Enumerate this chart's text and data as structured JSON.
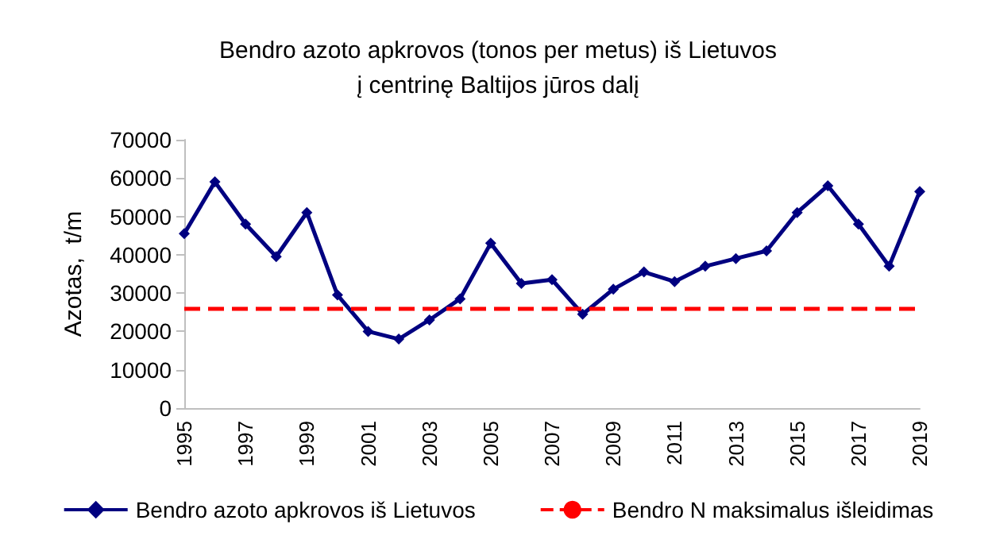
{
  "chart_data": {
    "type": "line",
    "title": "Bendro azoto apkrovos (tonos per metus) iš Lietuvos\nį centrinę Baltijos jūros dalį",
    "ylabel": "Azotas,  t/m",
    "categories": [
      "1995",
      null,
      "1997",
      null,
      "1999",
      null,
      "2001",
      null,
      "2003",
      null,
      "2005",
      null,
      "2007",
      null,
      "2009",
      null,
      "2011",
      null,
      "2013",
      null,
      "2015",
      null,
      "2017",
      null,
      "2019"
    ],
    "series": [
      {
        "name": "Bendro azoto apkrovos iš Lietuvos",
        "color": "#000080",
        "values": [
          45500,
          59000,
          48000,
          39500,
          51000,
          29500,
          20000,
          18000,
          23000,
          28500,
          43000,
          32500,
          33500,
          24500,
          31000,
          35500,
          33000,
          37000,
          39000,
          41000,
          51000,
          58000,
          48000,
          37000,
          56500
        ]
      }
    ],
    "ref_lines": [
      {
        "axis": "y",
        "value": 26000,
        "label": "Bendro N maksimalus išleidimas",
        "color": "#ff0000",
        "line_style": "dashed"
      }
    ],
    "ylim": [
      0,
      70000
    ],
    "yticks": [
      0,
      10000,
      20000,
      30000,
      40000,
      50000,
      60000,
      70000
    ],
    "grid": false,
    "legend": "bottom",
    "marker": "diamond",
    "line_style": "solid"
  }
}
